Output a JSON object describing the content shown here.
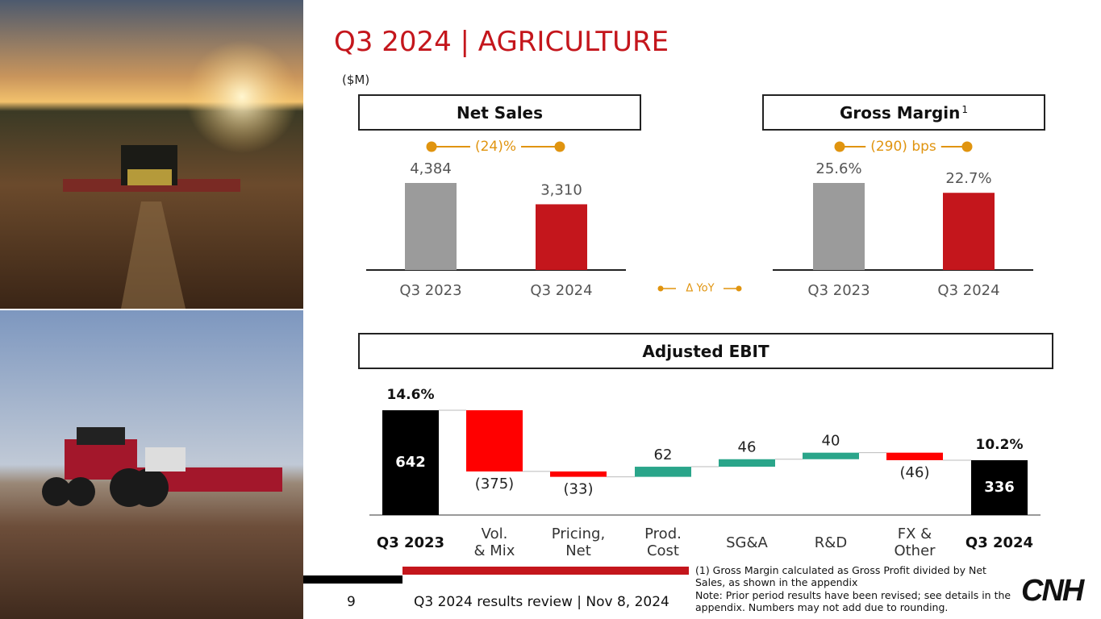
{
  "title": "Q3 2024 | AGRICULTURE",
  "unit": "($M)",
  "delta_legend": "Δ YoY",
  "chart_data": [
    {
      "type": "bar",
      "title": "Net Sales",
      "categories": [
        "Q3 2023",
        "Q3 2024"
      ],
      "values": [
        4384,
        3310
      ],
      "value_labels": [
        "4,384",
        "3,310"
      ],
      "colors": [
        "#9b9b9b",
        "#c4161c"
      ],
      "change_label": "(24)%"
    },
    {
      "type": "bar",
      "title": "Gross Margin",
      "title_note": "1",
      "categories": [
        "Q3 2023",
        "Q3 2024"
      ],
      "values": [
        25.6,
        22.7
      ],
      "value_labels": [
        "25.6%",
        "22.7%"
      ],
      "colors": [
        "#9b9b9b",
        "#c4161c"
      ],
      "change_label": "(290) bps"
    },
    {
      "type": "waterfall",
      "title": "Adjusted EBIT",
      "categories": [
        "Q3 2023",
        "Vol.\n& Mix",
        "Pricing,\nNet",
        "Prod.\nCost",
        "SG&A",
        "R&D",
        "FX &\nOther",
        "Q3 2024"
      ],
      "values": [
        642,
        -375,
        -33,
        62,
        46,
        40,
        -46,
        336
      ],
      "value_labels": [
        "642",
        "(375)",
        "(33)",
        "62",
        "46",
        "40",
        "(46)",
        "336"
      ],
      "totals": [
        true,
        false,
        false,
        false,
        false,
        false,
        false,
        true
      ],
      "margin_labels": [
        "14.6%",
        null,
        null,
        null,
        null,
        null,
        null,
        "10.2%"
      ],
      "colors": {
        "total": "#000000",
        "increase": "#2aa58a",
        "decrease": "#ff0000"
      }
    }
  ],
  "footnotes": [
    "(1) Gross Margin calculated as Gross Profit divided by Net Sales, as shown in the appendix",
    "Note: Prior period results have been revised; see details in the appendix. Numbers may not add due to rounding."
  ],
  "page_number": "9",
  "footer": "Q3 2024 results review | Nov 8, 2024",
  "logo": "CNH"
}
